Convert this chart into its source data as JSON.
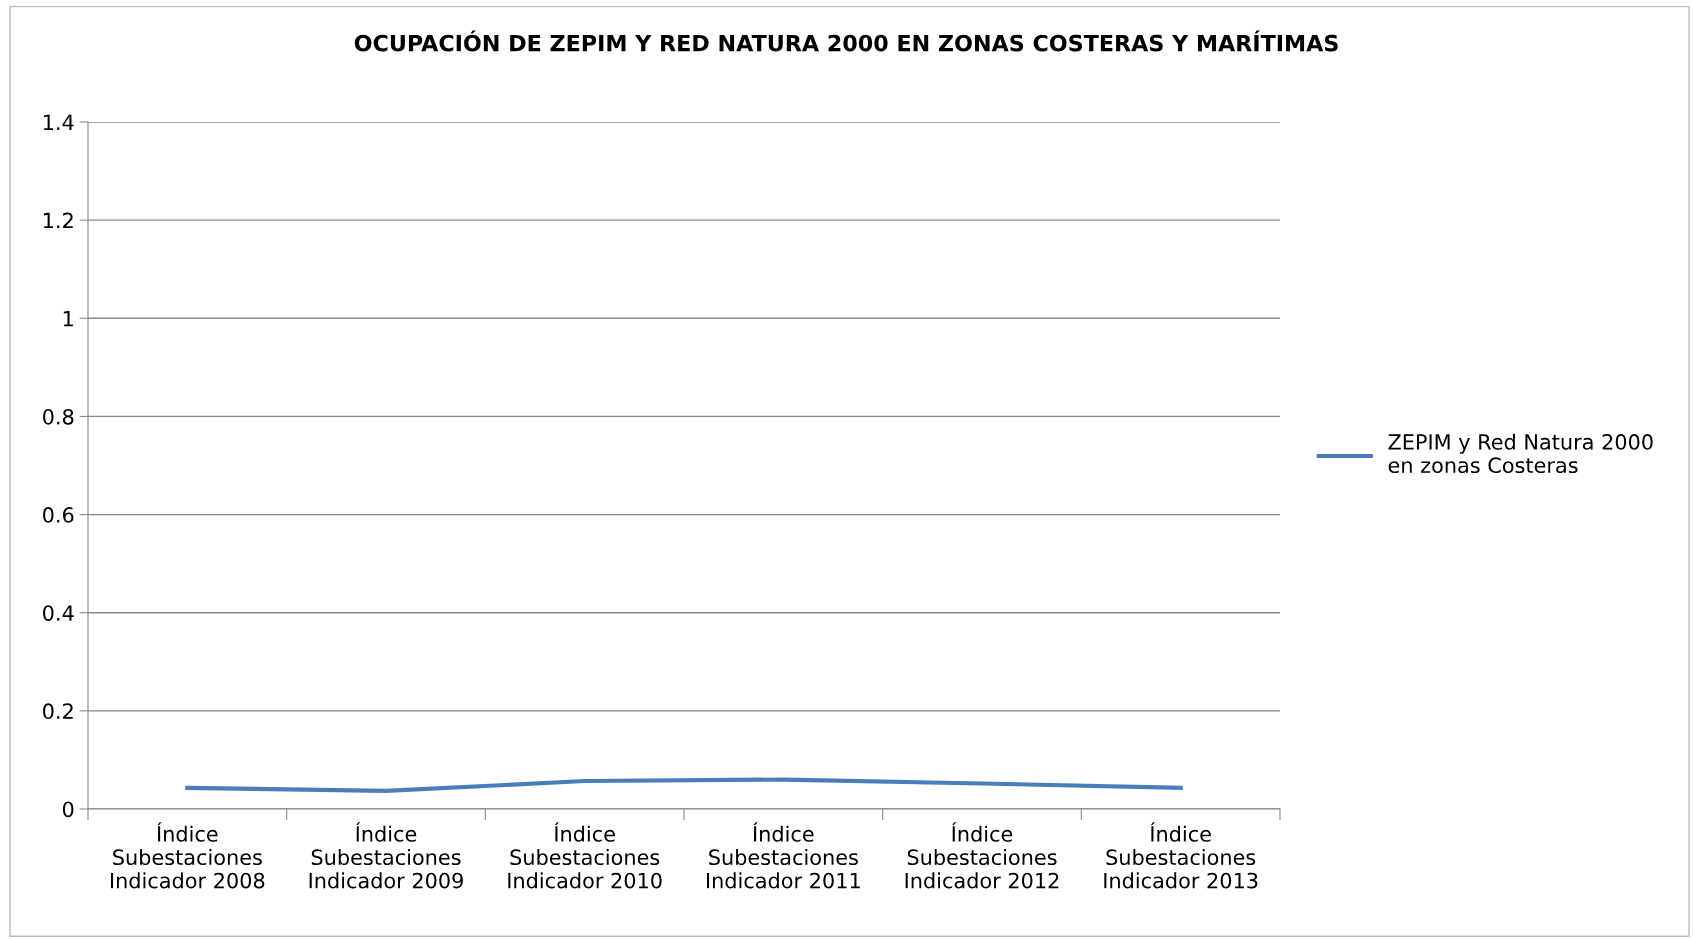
{
  "chart_data": {
    "type": "line",
    "title": "OCUPACIÓN DE ZEPIM Y RED NATURA 2000 EN ZONAS COSTERAS Y MARÍTIMAS",
    "categories": [
      "Índice\nSubestaciones\nIndicador 2008",
      "Índice\nSubestaciones\nIndicador 2009",
      "Índice\nSubestaciones\nIndicador 2010",
      "Índice\nSubestaciones\nIndicador 2011",
      "Índice\nSubestaciones\nIndicador 2012",
      "Índice\nSubestaciones\nIndicador 2013"
    ],
    "series": [
      {
        "name": "ZEPIM y Red Natura 2000\nen zonas Costeras",
        "color": "#4a7ebb",
        "values": [
          0.043,
          0.037,
          0.057,
          0.06,
          0.052,
          0.043
        ]
      }
    ],
    "ylim": [
      0,
      1.4
    ],
    "yticks": [
      0,
      0.2,
      0.4,
      0.6,
      0.8,
      1,
      1.2,
      1.4
    ],
    "grid": "y",
    "legend": "right",
    "marker": "none",
    "line_style": "solid"
  }
}
